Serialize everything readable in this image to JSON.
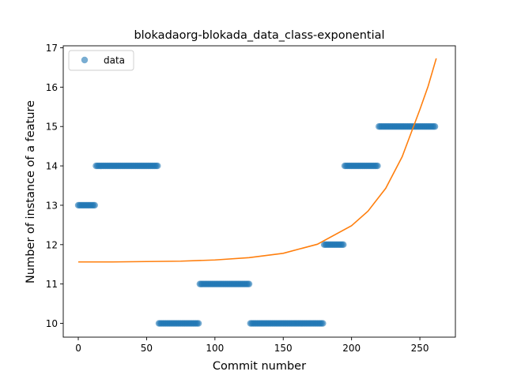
{
  "chart_data": {
    "type": "scatter",
    "title": "blokadaorg-blokada_data_class-exponential",
    "xlabel": "Commit number",
    "ylabel": "Number of instance of a feature",
    "xlim": [
      -11,
      276
    ],
    "ylim": [
      9.65,
      17.05
    ],
    "xticks": [
      0,
      50,
      100,
      150,
      200,
      250
    ],
    "yticks": [
      10,
      11,
      12,
      13,
      14,
      15,
      16,
      17
    ],
    "legend": {
      "placement": "top-left",
      "entries": [
        "data"
      ]
    },
    "grid": false,
    "colors": {
      "data": "#1f77b4",
      "fit": "#ff7f0e"
    },
    "series": [
      {
        "name": "data",
        "kind": "points",
        "segments": [
          {
            "x_start": 0,
            "x_end": 13,
            "y": 13
          },
          {
            "x_start": 13,
            "x_end": 59,
            "y": 14
          },
          {
            "x_start": 59,
            "x_end": 89,
            "y": 10
          },
          {
            "x_start": 89,
            "x_end": 126,
            "y": 11
          },
          {
            "x_start": 126,
            "x_end": 180,
            "y": 10
          },
          {
            "x_start": 180,
            "x_end": 195,
            "y": 12
          },
          {
            "x_start": 195,
            "x_end": 220,
            "y": 14
          },
          {
            "x_start": 220,
            "x_end": 262,
            "y": 15
          }
        ]
      },
      {
        "kind": "line",
        "points": [
          [
            0,
            11.56
          ],
          [
            25,
            11.56
          ],
          [
            50,
            11.57
          ],
          [
            75,
            11.58
          ],
          [
            100,
            11.61
          ],
          [
            125,
            11.67
          ],
          [
            150,
            11.78
          ],
          [
            175,
            12.01
          ],
          [
            200,
            12.48
          ],
          [
            212,
            12.85
          ],
          [
            225,
            13.43
          ],
          [
            237,
            14.23
          ],
          [
            250,
            15.43
          ],
          [
            256,
            16.02
          ],
          [
            262,
            16.73
          ]
        ]
      }
    ]
  }
}
